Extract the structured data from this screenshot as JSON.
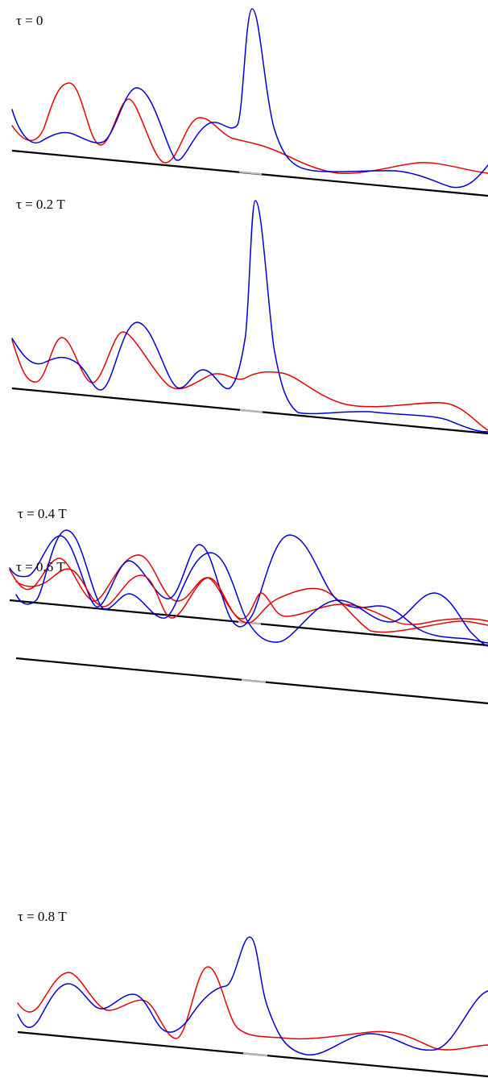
{
  "colors": {
    "red_curve": "#e60000",
    "blue_curve": "#0000d0",
    "baseline": "#000000",
    "baseline_segment": "#b8b8b8",
    "background": "#ffffff"
  },
  "panels": [
    {
      "label": "τ = 0"
    },
    {
      "label": "τ = 0.2 T"
    },
    {
      "label": "τ = 0.4 T"
    },
    {
      "label": "τ = 0.6 T"
    },
    {
      "label": "τ = 0.8 T"
    }
  ]
}
